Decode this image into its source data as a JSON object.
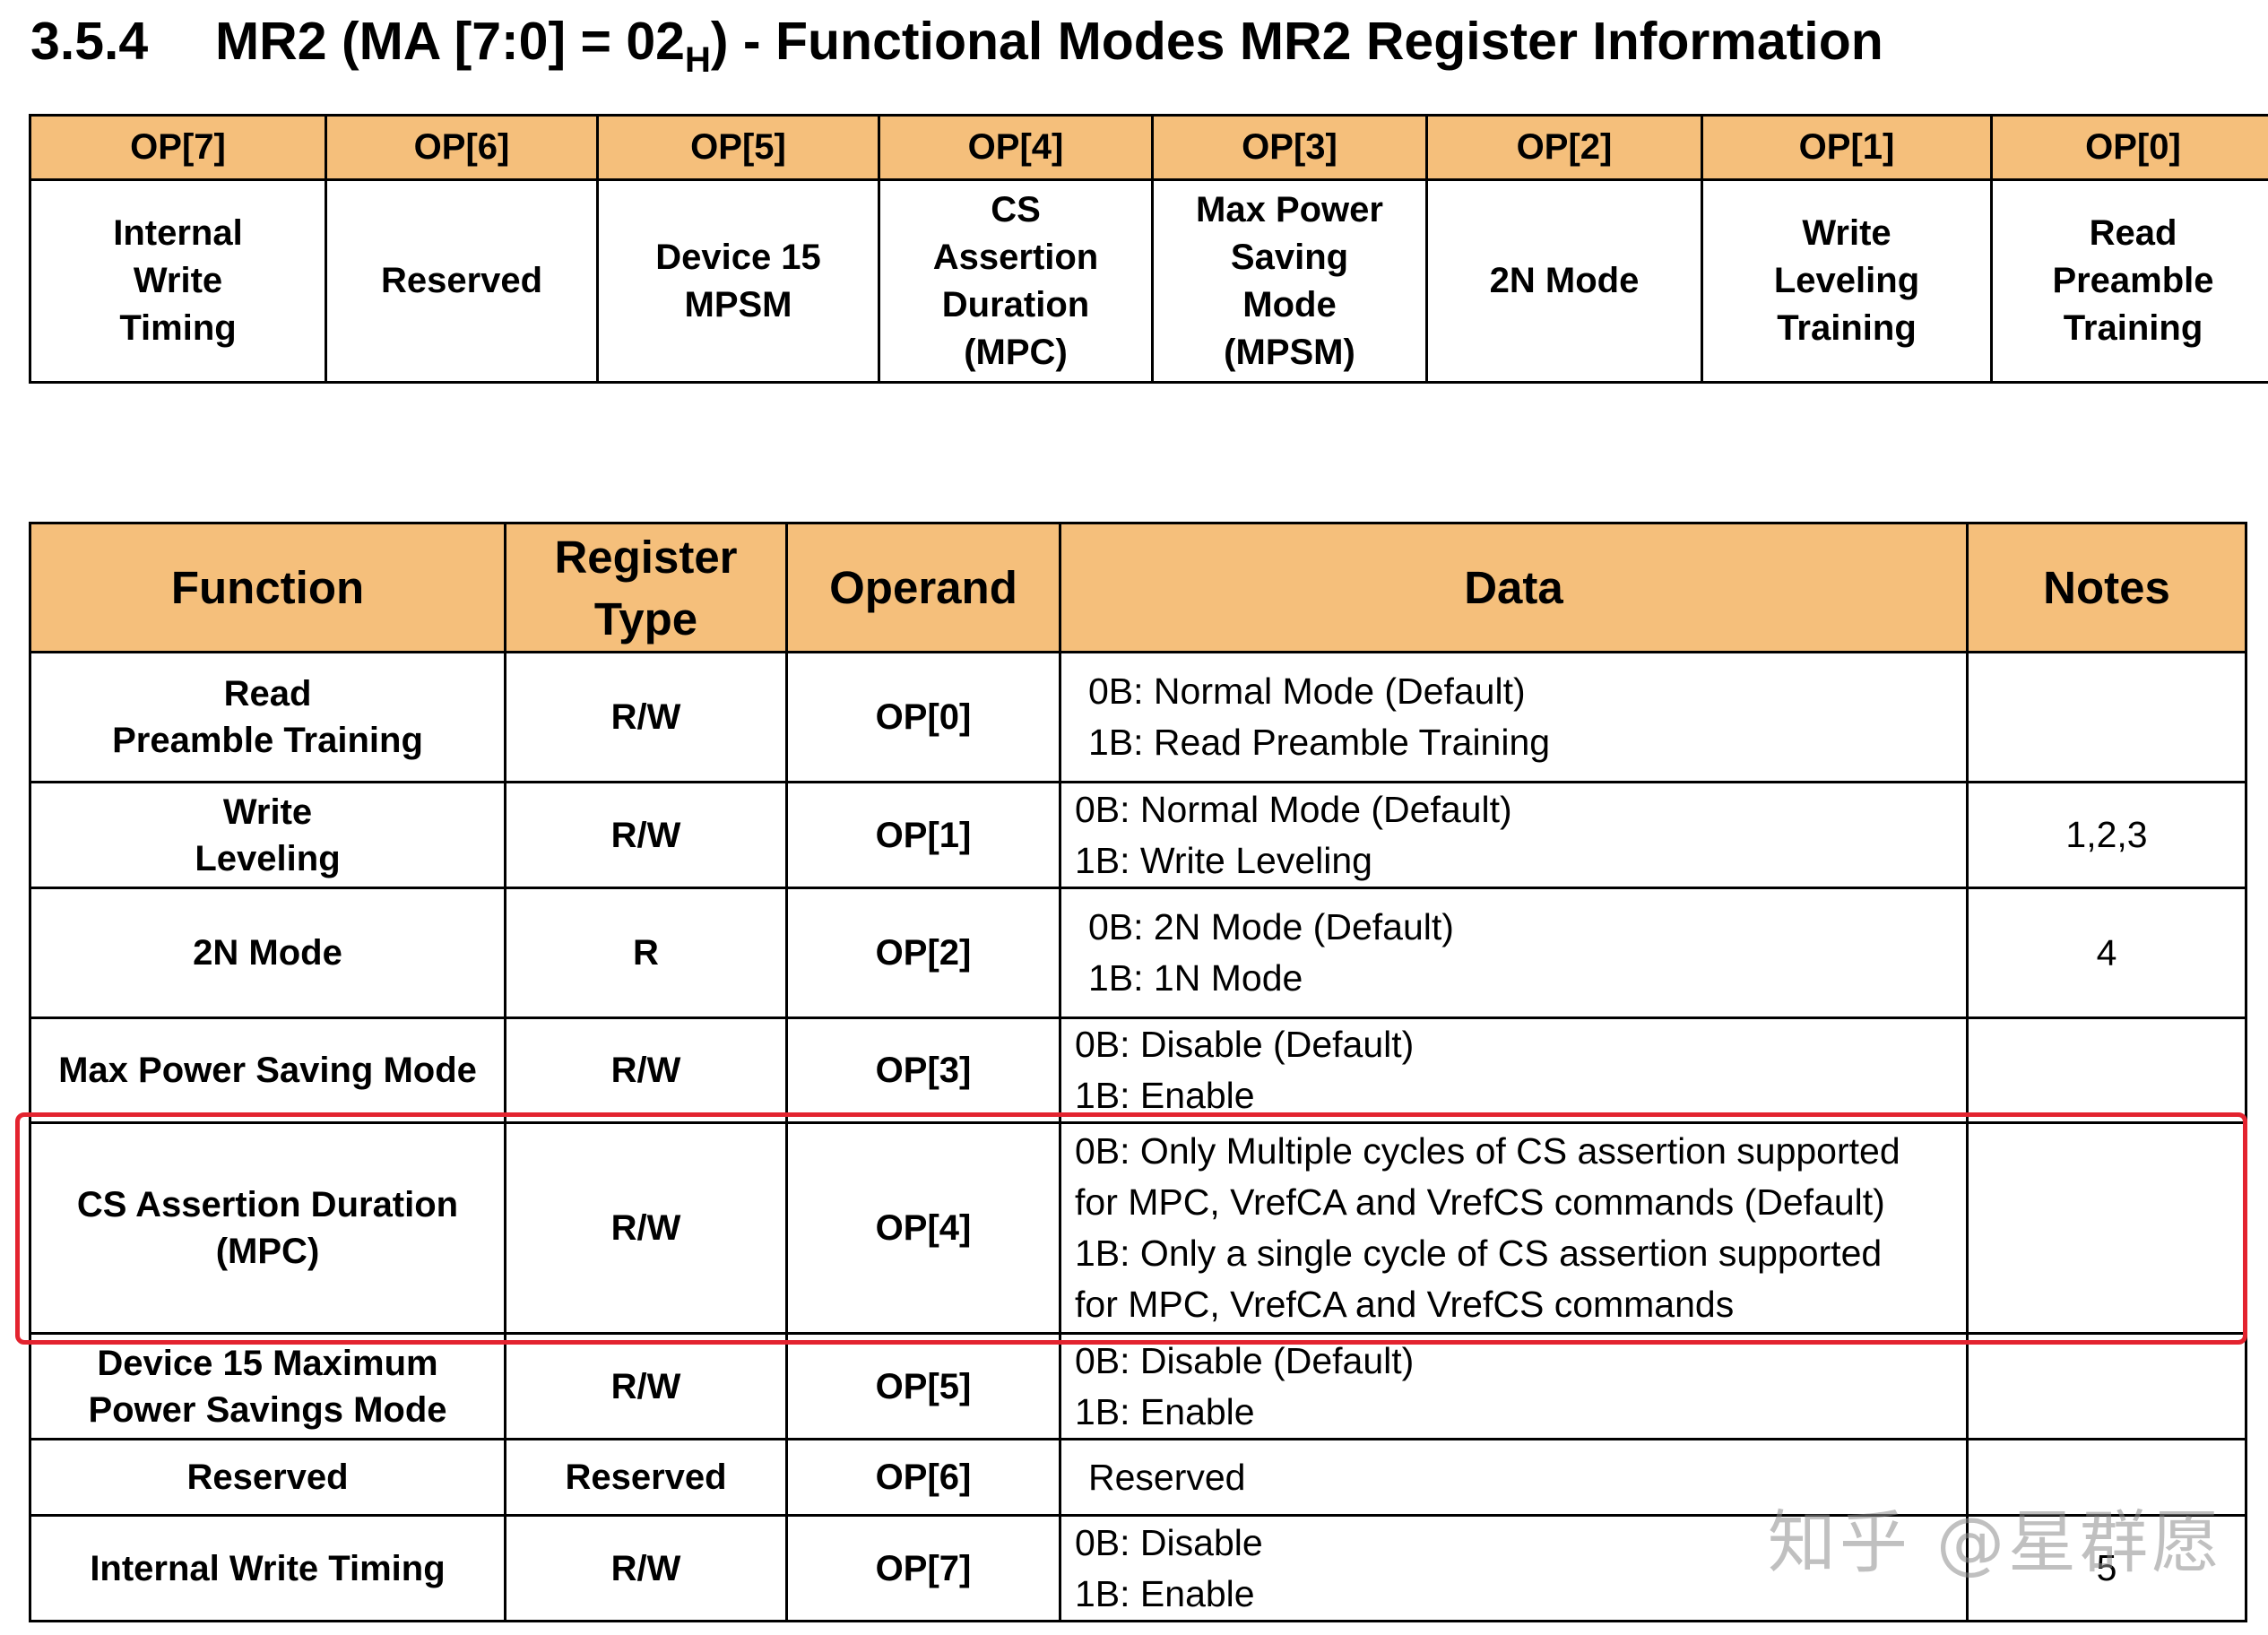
{
  "heading": {
    "number": "3.5.4",
    "title_main": "MR2 (MA [7:0] = 02",
    "title_sub": "H",
    "title_rest": ") - Functional Modes MR2 Register Information"
  },
  "op_table": {
    "headers": [
      "OP[7]",
      "OP[6]",
      "OP[5]",
      "OP[4]",
      "OP[3]",
      "OP[2]",
      "OP[1]",
      "OP[0]"
    ],
    "cells": [
      "Internal\nWrite\nTiming",
      "Reserved",
      "Device 15\nMPSM",
      "CS\nAssertion\nDuration\n(MPC)",
      "Max Power\nSaving\nMode\n(MPSM)",
      "2N Mode",
      "Write\nLeveling\nTraining",
      "Read\nPreamble\nTraining"
    ]
  },
  "main_table": {
    "headers": {
      "function": "Function",
      "register_type": "Register\nType",
      "operand": "Operand",
      "data": "Data",
      "notes": "Notes"
    },
    "rows": [
      {
        "function": "Read\nPreamble Training",
        "type": "R/W",
        "operand": "OP[0]",
        "data": "0B: Normal Mode (Default)\n1B: Read Preamble Training",
        "notes": ""
      },
      {
        "function": "Write\nLeveling",
        "type": "R/W",
        "operand": "OP[1]",
        "data": "0B: Normal Mode (Default)\n1B: Write Leveling",
        "notes": "1,2,3"
      },
      {
        "function": "2N Mode",
        "type": "R",
        "operand": "OP[2]",
        "data": "0B: 2N Mode (Default)\n1B: 1N Mode",
        "notes": "4"
      },
      {
        "function": "Max Power Saving Mode",
        "type": "R/W",
        "operand": "OP[3]",
        "data": "0B: Disable (Default)\n1B: Enable",
        "notes": ""
      },
      {
        "function": "CS Assertion Duration\n(MPC)",
        "type": "R/W",
        "operand": "OP[4]",
        "data": "0B: Only Multiple cycles of CS assertion supported\nfor MPC, VrefCA and VrefCS commands (Default)\n1B: Only a single cycle of CS assertion supported\nfor MPC, VrefCA and VrefCS commands",
        "notes": ""
      },
      {
        "function": "Device 15 Maximum\nPower Savings Mode",
        "type": "R/W",
        "operand": "OP[5]",
        "data": "0B: Disable (Default)\n1B: Enable",
        "notes": ""
      },
      {
        "function": "Reserved",
        "type": "Reserved",
        "operand": "OP[6]",
        "data": "Reserved",
        "notes": ""
      },
      {
        "function": "Internal Write Timing",
        "type": "R/W",
        "operand": "OP[7]",
        "data": "0B: Disable\n1B: Enable",
        "notes": "5"
      }
    ]
  },
  "highlight_color": "#e3232f",
  "header_fill_color": "#f5bf7b",
  "watermark": "知乎 @星群愿"
}
